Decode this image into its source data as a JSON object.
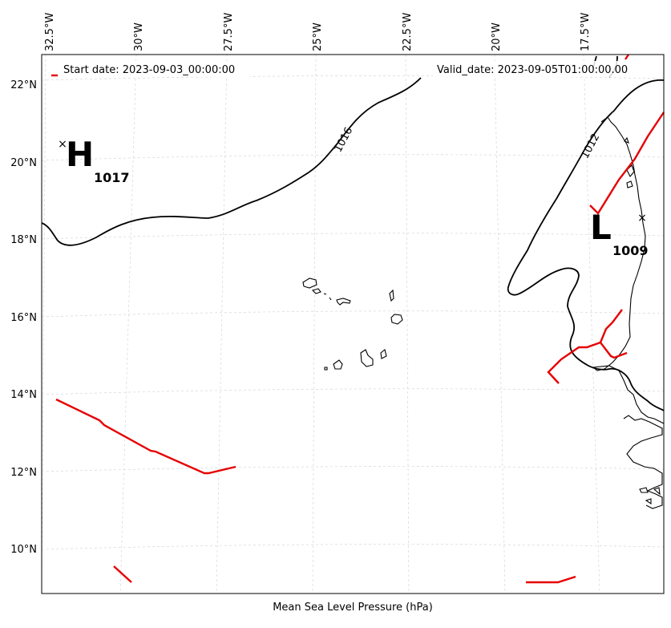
{
  "map": {
    "legend": {
      "start_date": "Start date: 2023-09-03_00:00:00",
      "valid_date": "Valid_date: 2023-09-05T01:00:00.00",
      "front_color": "#e60000"
    },
    "xlabel": "Mean Sea Level Pressure (hPa)",
    "lon_ticks": [
      "32.5°W",
      "30°W",
      "27.5°W",
      "25°W",
      "22.5°W",
      "20°W",
      "17.5°W"
    ],
    "lat_ticks": [
      "22°N",
      "20°N",
      "18°N",
      "16°N",
      "14°N",
      "12°N",
      "10°N"
    ],
    "isobar_labels": [
      "1016",
      "1012"
    ],
    "high": {
      "letter": "H",
      "value": "1017",
      "lat": 20.5,
      "lon": -32.0
    },
    "low": {
      "letter": "L",
      "value": "1009",
      "lat": 18.6,
      "lon": -16.5
    }
  }
}
